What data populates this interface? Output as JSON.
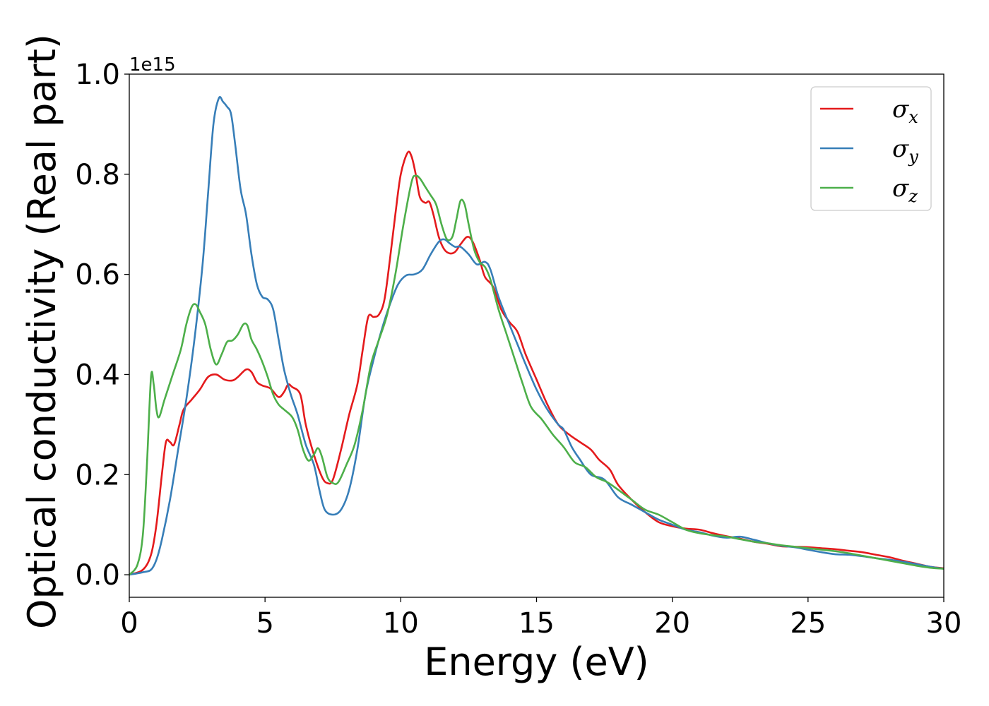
{
  "chart_data": {
    "type": "line",
    "xlabel": "Energy (eV)",
    "ylabel": "Optical conductivity (Real part)",
    "y_offset_label": "1e15",
    "xlim": [
      0,
      30
    ],
    "ylim": [
      -0.045,
      1.0
    ],
    "x_ticks": [
      0,
      5,
      10,
      15,
      20,
      25,
      30
    ],
    "x_tick_labels": [
      "0",
      "5",
      "10",
      "15",
      "20",
      "25",
      "30"
    ],
    "y_ticks": [
      0.0,
      0.2,
      0.4,
      0.6,
      0.8,
      1.0
    ],
    "y_tick_labels": [
      "0.0",
      "0.2",
      "0.4",
      "0.6",
      "0.8",
      "1.0"
    ],
    "grid": false,
    "legend_position": "top-right",
    "series": [
      {
        "name": "σx",
        "legend_symbol": "σ",
        "legend_subscript": "x",
        "color": "#e41a1c",
        "points": [
          [
            0,
            0
          ],
          [
            0.5,
            0.01
          ],
          [
            0.8,
            0.04
          ],
          [
            1.0,
            0.1
          ],
          [
            1.2,
            0.2
          ],
          [
            1.35,
            0.265
          ],
          [
            1.5,
            0.265
          ],
          [
            1.65,
            0.26
          ],
          [
            1.85,
            0.3
          ],
          [
            2.0,
            0.33
          ],
          [
            2.3,
            0.35
          ],
          [
            2.6,
            0.37
          ],
          [
            2.9,
            0.395
          ],
          [
            3.2,
            0.4
          ],
          [
            3.5,
            0.39
          ],
          [
            3.8,
            0.388
          ],
          [
            4.0,
            0.395
          ],
          [
            4.3,
            0.41
          ],
          [
            4.5,
            0.405
          ],
          [
            4.7,
            0.385
          ],
          [
            4.9,
            0.378
          ],
          [
            5.2,
            0.372
          ],
          [
            5.5,
            0.355
          ],
          [
            5.7,
            0.365
          ],
          [
            5.85,
            0.38
          ],
          [
            6.0,
            0.375
          ],
          [
            6.3,
            0.36
          ],
          [
            6.5,
            0.3
          ],
          [
            6.8,
            0.24
          ],
          [
            7.1,
            0.195
          ],
          [
            7.3,
            0.183
          ],
          [
            7.5,
            0.19
          ],
          [
            7.8,
            0.25
          ],
          [
            8.1,
            0.32
          ],
          [
            8.4,
            0.38
          ],
          [
            8.6,
            0.45
          ],
          [
            8.8,
            0.515
          ],
          [
            9.0,
            0.515
          ],
          [
            9.2,
            0.52
          ],
          [
            9.4,
            0.55
          ],
          [
            9.6,
            0.63
          ],
          [
            9.8,
            0.72
          ],
          [
            10.0,
            0.8
          ],
          [
            10.25,
            0.843
          ],
          [
            10.4,
            0.835
          ],
          [
            10.55,
            0.8
          ],
          [
            10.7,
            0.755
          ],
          [
            10.9,
            0.743
          ],
          [
            11.05,
            0.745
          ],
          [
            11.2,
            0.72
          ],
          [
            11.4,
            0.675
          ],
          [
            11.6,
            0.65
          ],
          [
            11.8,
            0.642
          ],
          [
            12.0,
            0.645
          ],
          [
            12.2,
            0.66
          ],
          [
            12.45,
            0.675
          ],
          [
            12.65,
            0.665
          ],
          [
            12.9,
            0.63
          ],
          [
            13.1,
            0.595
          ],
          [
            13.4,
            0.575
          ],
          [
            13.7,
            0.53
          ],
          [
            14.0,
            0.505
          ],
          [
            14.3,
            0.485
          ],
          [
            14.6,
            0.44
          ],
          [
            15.0,
            0.39
          ],
          [
            15.4,
            0.34
          ],
          [
            15.8,
            0.3
          ],
          [
            16.2,
            0.28
          ],
          [
            16.6,
            0.265
          ],
          [
            17.0,
            0.25
          ],
          [
            17.3,
            0.23
          ],
          [
            17.7,
            0.21
          ],
          [
            18.0,
            0.18
          ],
          [
            18.5,
            0.15
          ],
          [
            19.0,
            0.125
          ],
          [
            19.5,
            0.105
          ],
          [
            20.0,
            0.097
          ],
          [
            20.5,
            0.092
          ],
          [
            21.0,
            0.09
          ],
          [
            21.5,
            0.083
          ],
          [
            22.0,
            0.077
          ],
          [
            22.5,
            0.072
          ],
          [
            23.0,
            0.066
          ],
          [
            23.5,
            0.062
          ],
          [
            24.0,
            0.057
          ],
          [
            24.5,
            0.056
          ],
          [
            25.0,
            0.055
          ],
          [
            25.5,
            0.053
          ],
          [
            26.0,
            0.051
          ],
          [
            26.5,
            0.048
          ],
          [
            27.0,
            0.045
          ],
          [
            27.5,
            0.04
          ],
          [
            28.0,
            0.035
          ],
          [
            28.5,
            0.028
          ],
          [
            29.0,
            0.022
          ],
          [
            29.5,
            0.016
          ],
          [
            30.0,
            0.013
          ]
        ]
      },
      {
        "name": "σy",
        "legend_symbol": "σ",
        "legend_subscript": "y",
        "color": "#377eb8",
        "points": [
          [
            0,
            0
          ],
          [
            0.5,
            0.005
          ],
          [
            0.8,
            0.01
          ],
          [
            1.0,
            0.03
          ],
          [
            1.2,
            0.07
          ],
          [
            1.5,
            0.15
          ],
          [
            1.8,
            0.25
          ],
          [
            2.1,
            0.35
          ],
          [
            2.4,
            0.47
          ],
          [
            2.7,
            0.62
          ],
          [
            2.9,
            0.76
          ],
          [
            3.1,
            0.9
          ],
          [
            3.3,
            0.952
          ],
          [
            3.45,
            0.945
          ],
          [
            3.6,
            0.935
          ],
          [
            3.75,
            0.92
          ],
          [
            3.9,
            0.86
          ],
          [
            4.1,
            0.77
          ],
          [
            4.3,
            0.72
          ],
          [
            4.5,
            0.64
          ],
          [
            4.7,
            0.58
          ],
          [
            4.9,
            0.555
          ],
          [
            5.1,
            0.55
          ],
          [
            5.3,
            0.53
          ],
          [
            5.5,
            0.47
          ],
          [
            5.7,
            0.41
          ],
          [
            5.95,
            0.36
          ],
          [
            6.2,
            0.32
          ],
          [
            6.5,
            0.26
          ],
          [
            6.8,
            0.22
          ],
          [
            7.0,
            0.17
          ],
          [
            7.2,
            0.13
          ],
          [
            7.5,
            0.12
          ],
          [
            7.8,
            0.13
          ],
          [
            8.1,
            0.17
          ],
          [
            8.4,
            0.25
          ],
          [
            8.7,
            0.36
          ],
          [
            9.0,
            0.43
          ],
          [
            9.3,
            0.49
          ],
          [
            9.6,
            0.54
          ],
          [
            9.9,
            0.58
          ],
          [
            10.2,
            0.598
          ],
          [
            10.5,
            0.6
          ],
          [
            10.8,
            0.61
          ],
          [
            11.1,
            0.64
          ],
          [
            11.4,
            0.665
          ],
          [
            11.6,
            0.67
          ],
          [
            11.8,
            0.662
          ],
          [
            12.0,
            0.655
          ],
          [
            12.2,
            0.655
          ],
          [
            12.5,
            0.64
          ],
          [
            12.8,
            0.62
          ],
          [
            13.1,
            0.625
          ],
          [
            13.3,
            0.61
          ],
          [
            13.6,
            0.555
          ],
          [
            14.0,
            0.5
          ],
          [
            14.3,
            0.46
          ],
          [
            14.6,
            0.42
          ],
          [
            15.0,
            0.37
          ],
          [
            15.4,
            0.33
          ],
          [
            15.8,
            0.3
          ],
          [
            16.0,
            0.29
          ],
          [
            16.3,
            0.255
          ],
          [
            16.6,
            0.23
          ],
          [
            17.0,
            0.2
          ],
          [
            17.5,
            0.19
          ],
          [
            18.0,
            0.155
          ],
          [
            18.5,
            0.14
          ],
          [
            19.0,
            0.125
          ],
          [
            19.5,
            0.11
          ],
          [
            20.0,
            0.1
          ],
          [
            20.5,
            0.09
          ],
          [
            21.0,
            0.085
          ],
          [
            21.5,
            0.078
          ],
          [
            22.0,
            0.074
          ],
          [
            22.5,
            0.076
          ],
          [
            23.0,
            0.07
          ],
          [
            23.5,
            0.063
          ],
          [
            24.0,
            0.058
          ],
          [
            24.5,
            0.055
          ],
          [
            25.0,
            0.05
          ],
          [
            25.5,
            0.045
          ],
          [
            26.0,
            0.041
          ],
          [
            26.5,
            0.04
          ],
          [
            27.0,
            0.037
          ],
          [
            27.5,
            0.033
          ],
          [
            28.0,
            0.03
          ],
          [
            28.5,
            0.026
          ],
          [
            29.0,
            0.021
          ],
          [
            29.5,
            0.016
          ],
          [
            30.0,
            0.012
          ]
        ]
      },
      {
        "name": "σz",
        "legend_symbol": "σ",
        "legend_subscript": "z",
        "color": "#4daf4a",
        "points": [
          [
            0,
            0
          ],
          [
            0.3,
            0.02
          ],
          [
            0.5,
            0.08
          ],
          [
            0.65,
            0.22
          ],
          [
            0.8,
            0.395
          ],
          [
            0.9,
            0.38
          ],
          [
            1.0,
            0.33
          ],
          [
            1.1,
            0.315
          ],
          [
            1.3,
            0.35
          ],
          [
            1.6,
            0.4
          ],
          [
            1.9,
            0.45
          ],
          [
            2.1,
            0.5
          ],
          [
            2.3,
            0.535
          ],
          [
            2.45,
            0.54
          ],
          [
            2.6,
            0.525
          ],
          [
            2.8,
            0.5
          ],
          [
            3.0,
            0.45
          ],
          [
            3.2,
            0.42
          ],
          [
            3.4,
            0.44
          ],
          [
            3.6,
            0.465
          ],
          [
            3.8,
            0.468
          ],
          [
            4.0,
            0.48
          ],
          [
            4.2,
            0.5
          ],
          [
            4.35,
            0.498
          ],
          [
            4.5,
            0.47
          ],
          [
            4.7,
            0.45
          ],
          [
            4.9,
            0.425
          ],
          [
            5.1,
            0.395
          ],
          [
            5.3,
            0.36
          ],
          [
            5.5,
            0.34
          ],
          [
            5.7,
            0.33
          ],
          [
            6.0,
            0.315
          ],
          [
            6.2,
            0.29
          ],
          [
            6.4,
            0.25
          ],
          [
            6.6,
            0.228
          ],
          [
            6.8,
            0.24
          ],
          [
            6.95,
            0.253
          ],
          [
            7.1,
            0.235
          ],
          [
            7.3,
            0.195
          ],
          [
            7.5,
            0.183
          ],
          [
            7.7,
            0.185
          ],
          [
            8.0,
            0.22
          ],
          [
            8.3,
            0.26
          ],
          [
            8.6,
            0.33
          ],
          [
            8.9,
            0.42
          ],
          [
            9.2,
            0.47
          ],
          [
            9.5,
            0.52
          ],
          [
            9.8,
            0.6
          ],
          [
            10.1,
            0.7
          ],
          [
            10.4,
            0.785
          ],
          [
            10.55,
            0.797
          ],
          [
            10.7,
            0.792
          ],
          [
            10.9,
            0.775
          ],
          [
            11.1,
            0.758
          ],
          [
            11.3,
            0.74
          ],
          [
            11.5,
            0.7
          ],
          [
            11.7,
            0.67
          ],
          [
            11.9,
            0.675
          ],
          [
            12.05,
            0.71
          ],
          [
            12.2,
            0.747
          ],
          [
            12.35,
            0.74
          ],
          [
            12.5,
            0.7
          ],
          [
            12.7,
            0.65
          ],
          [
            12.9,
            0.625
          ],
          [
            13.1,
            0.615
          ],
          [
            13.3,
            0.59
          ],
          [
            13.6,
            0.53
          ],
          [
            13.9,
            0.48
          ],
          [
            14.2,
            0.43
          ],
          [
            14.5,
            0.38
          ],
          [
            14.8,
            0.335
          ],
          [
            15.2,
            0.31
          ],
          [
            15.6,
            0.28
          ],
          [
            16.0,
            0.255
          ],
          [
            16.4,
            0.225
          ],
          [
            16.8,
            0.215
          ],
          [
            17.2,
            0.195
          ],
          [
            17.6,
            0.185
          ],
          [
            18.0,
            0.17
          ],
          [
            18.5,
            0.15
          ],
          [
            19.0,
            0.13
          ],
          [
            19.5,
            0.12
          ],
          [
            20.0,
            0.105
          ],
          [
            20.5,
            0.09
          ],
          [
            21.0,
            0.083
          ],
          [
            21.5,
            0.079
          ],
          [
            22.0,
            0.076
          ],
          [
            22.5,
            0.071
          ],
          [
            23.0,
            0.066
          ],
          [
            23.5,
            0.063
          ],
          [
            24.0,
            0.059
          ],
          [
            24.5,
            0.056
          ],
          [
            25.0,
            0.053
          ],
          [
            25.5,
            0.05
          ],
          [
            26.0,
            0.047
          ],
          [
            26.5,
            0.043
          ],
          [
            27.0,
            0.038
          ],
          [
            27.5,
            0.033
          ],
          [
            28.0,
            0.028
          ],
          [
            28.5,
            0.023
          ],
          [
            29.0,
            0.018
          ],
          [
            29.5,
            0.014
          ],
          [
            30.0,
            0.012
          ]
        ]
      }
    ]
  }
}
